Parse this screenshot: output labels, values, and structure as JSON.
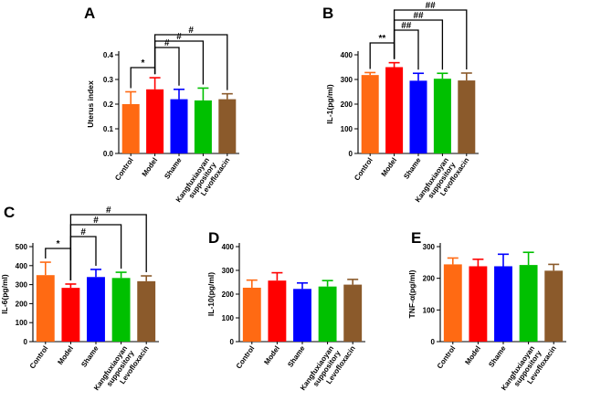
{
  "colors": [
    "#ff6a13",
    "#ff0000",
    "#0000ff",
    "#00c000",
    "#8b5a2b"
  ],
  "chart_data": [
    {
      "type": "bar",
      "panel": "A",
      "ylabel": "Uterus index",
      "categories": [
        "Control",
        "Model",
        "Shame",
        "Kangfuxiaoyan\nsuppository",
        "Levofloxacin"
      ],
      "values": [
        0.2,
        0.26,
        0.22,
        0.215,
        0.22
      ],
      "errors": [
        0.05,
        0.047,
        0.04,
        0.05,
        0.022
      ],
      "ylim": [
        0.0,
        0.4
      ],
      "yticks": [
        "0.0",
        "0.1",
        "0.2",
        "0.3",
        "0.4"
      ],
      "significance": [
        {
          "from": 0,
          "to": 1,
          "label": "*"
        },
        {
          "from": 1,
          "to": 2,
          "label": "#"
        },
        {
          "from": 1,
          "to": 3,
          "label": "#"
        },
        {
          "from": 1,
          "to": 4,
          "label": "#"
        }
      ]
    },
    {
      "type": "bar",
      "panel": "B",
      "ylabel": "IL-1(pg/ml)",
      "categories": [
        "Control",
        "Model",
        "Shame",
        "Kangfuxiaoyan\nsuppository",
        "Levofloxacin"
      ],
      "values": [
        318,
        350,
        295,
        303,
        296
      ],
      "errors": [
        10,
        18,
        30,
        22,
        30
      ],
      "ylim": [
        0,
        400
      ],
      "yticks": [
        "0",
        "100",
        "200",
        "300",
        "400"
      ],
      "significance": [
        {
          "from": 0,
          "to": 1,
          "label": "**"
        },
        {
          "from": 1,
          "to": 2,
          "label": "##"
        },
        {
          "from": 1,
          "to": 3,
          "label": "##"
        },
        {
          "from": 1,
          "to": 4,
          "label": "##"
        }
      ]
    },
    {
      "type": "bar",
      "panel": "C",
      "ylabel": "IL-6(pg/ml)",
      "categories": [
        "Control",
        "Model",
        "Shame",
        "Kangfuxiaoyan\nsuppository",
        "Levofloxacin"
      ],
      "values": [
        350,
        283,
        340,
        335,
        318
      ],
      "errors": [
        68,
        20,
        40,
        30,
        28
      ],
      "ylim": [
        0,
        500
      ],
      "yticks": [
        "0",
        "100",
        "200",
        "300",
        "400",
        "500"
      ],
      "significance": [
        {
          "from": 0,
          "to": 1,
          "label": "*"
        },
        {
          "from": 1,
          "to": 2,
          "label": "#"
        },
        {
          "from": 1,
          "to": 3,
          "label": "#"
        },
        {
          "from": 1,
          "to": 4,
          "label": "#"
        }
      ]
    },
    {
      "type": "bar",
      "panel": "D",
      "ylabel": "IL-10(pg/ml)",
      "categories": [
        "Control",
        "Model",
        "Shame",
        "Kangfuxiaoyan\nsuppository",
        "Levofloxacin"
      ],
      "values": [
        227,
        257,
        222,
        232,
        240
      ],
      "errors": [
        32,
        33,
        25,
        25,
        22
      ],
      "ylim": [
        0,
        400
      ],
      "yticks": [
        "0",
        "100",
        "200",
        "300",
        "400"
      ],
      "significance": []
    },
    {
      "type": "bar",
      "panel": "E",
      "ylabel": "TNF-α(pg/ml)",
      "categories": [
        "Control",
        "Model",
        "Shame",
        "Kangfuxiaoyan\nsuppository",
        "Levofloxacin"
      ],
      "values": [
        244,
        238,
        238,
        242,
        224
      ],
      "errors": [
        20,
        22,
        38,
        40,
        20
      ],
      "ylim": [
        0,
        300
      ],
      "yticks": [
        "0",
        "100",
        "200",
        "300"
      ],
      "significance": []
    }
  ]
}
